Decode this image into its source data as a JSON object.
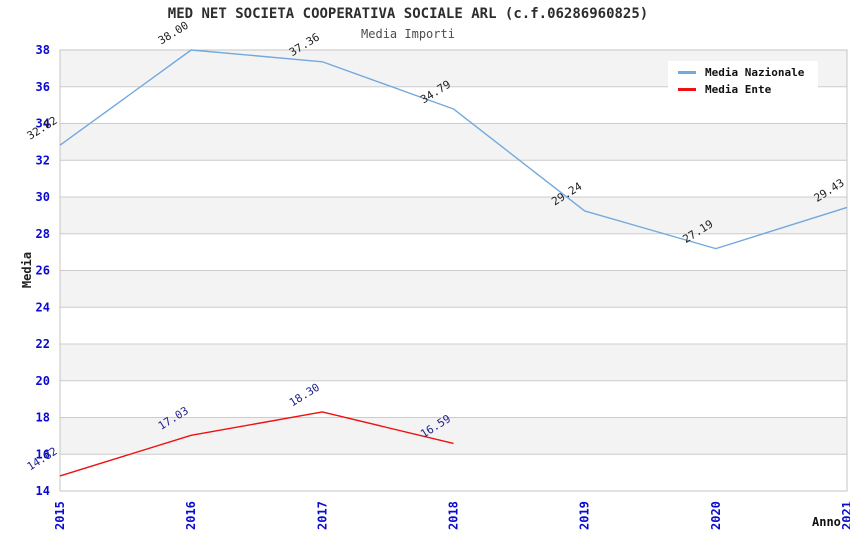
{
  "header": {
    "title": "MED NET SOCIETA COOPERATIVA SOCIALE ARL (c.f.06286960825)",
    "subtitle": "Media Importi"
  },
  "axes": {
    "y_label": "Media",
    "x_label": "Anno"
  },
  "chart_data": {
    "type": "line",
    "title": "MED NET SOCIETA COOPERATIVA SOCIALE ARL (c.f.06286960825)",
    "subtitle": "Media Importi",
    "xlabel": "Anno",
    "ylabel": "Media",
    "categories": [
      "2015",
      "2016",
      "2017",
      "2018",
      "2019",
      "2020",
      "2021"
    ],
    "series": [
      {
        "name": "Media Nazionale",
        "color": "#74a9dc",
        "label_color": "#1f1f1f",
        "values": [
          32.82,
          38.0,
          37.36,
          34.79,
          29.24,
          27.19,
          29.43
        ]
      },
      {
        "name": "Media Ente",
        "color": "#ee1111",
        "label_color": "#20208f",
        "values": [
          14.82,
          17.03,
          18.3,
          16.59,
          null,
          null,
          null
        ]
      }
    ],
    "ylim": [
      14,
      38
    ],
    "ytick_step": 2,
    "grid": true,
    "legend_position": "top-right",
    "band_colors": [
      "#f3f3f3",
      "#ffffff"
    ],
    "grid_color": "#cccccc",
    "border_color": "#c5c5c5",
    "tick_color": "#0a0ad0",
    "point_label_decimals": 2
  }
}
